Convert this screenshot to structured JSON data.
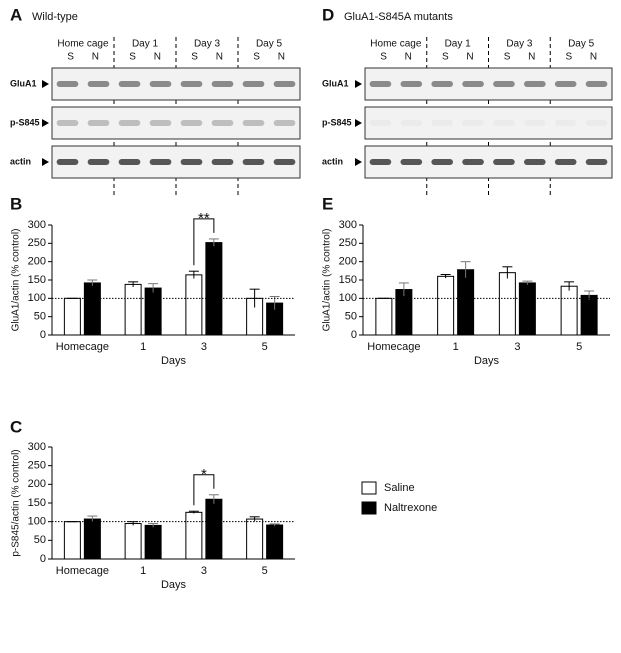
{
  "blots": [
    {
      "letter": "A",
      "title": "Wild-type",
      "groups": [
        "Home cage",
        "Day 1",
        "Day 3",
        "Day 5"
      ],
      "lanes": [
        "S",
        "N"
      ],
      "rows": [
        "GluA1",
        "p-S845",
        "actin"
      ]
    },
    {
      "letter": "D",
      "title": "GluA1-S845A mutants",
      "groups": [
        "Home cage",
        "Day 1",
        "Day 3",
        "Day 5"
      ],
      "lanes": [
        "S",
        "N"
      ],
      "rows": [
        "GluA1",
        "p-S845",
        "actin"
      ]
    }
  ],
  "chart_data": [
    {
      "type": "bar",
      "letter": "B",
      "categories": [
        "Homecage",
        "1",
        "3",
        "5"
      ],
      "xlabel": "Days",
      "ylabel": "GluA1/actin (% control)",
      "ylim": [
        0,
        300
      ],
      "yticks": [
        0,
        50,
        100,
        150,
        200,
        250,
        300
      ],
      "reference_line": 100,
      "series": [
        {
          "name": "Saline",
          "color": "#ffffff",
          "values": [
            100,
            138,
            164,
            100
          ],
          "errors": [
            0,
            7,
            10,
            25
          ]
        },
        {
          "name": "Naltrexone",
          "color": "#000000",
          "values": [
            142,
            128,
            252,
            87
          ],
          "errors": [
            8,
            12,
            10,
            18
          ]
        }
      ],
      "annotations": [
        {
          "text": "**"
        }
      ]
    },
    {
      "type": "bar",
      "letter": "C",
      "categories": [
        "Homecage",
        "1",
        "3",
        "5"
      ],
      "xlabel": "Days",
      "ylabel": "p-S845/actin (% control)",
      "ylim": [
        0,
        300
      ],
      "yticks": [
        0,
        50,
        100,
        150,
        200,
        250,
        300
      ],
      "reference_line": 100,
      "legend": "right",
      "series": [
        {
          "name": "Saline",
          "color": "#ffffff",
          "values": [
            100,
            95,
            125,
            107
          ],
          "errors": [
            0,
            5,
            3,
            6
          ]
        },
        {
          "name": "Naltrexone",
          "color": "#000000",
          "values": [
            107,
            90,
            160,
            91
          ],
          "errors": [
            8,
            5,
            12,
            3
          ]
        }
      ],
      "annotations": [
        {
          "text": "*"
        }
      ]
    },
    {
      "type": "bar",
      "letter": "E",
      "categories": [
        "Homecage",
        "1",
        "3",
        "5"
      ],
      "xlabel": "Days",
      "ylabel": "GluA1/actin (% control)",
      "ylim": [
        0,
        300
      ],
      "yticks": [
        0,
        50,
        100,
        150,
        200,
        250,
        300
      ],
      "reference_line": 100,
      "series": [
        {
          "name": "Saline",
          "color": "#ffffff",
          "values": [
            100,
            160,
            170,
            133
          ],
          "errors": [
            0,
            5,
            16,
            12
          ]
        },
        {
          "name": "Naltrexone",
          "color": "#000000",
          "values": [
            124,
            178,
            142,
            108
          ],
          "errors": [
            18,
            22,
            5,
            12
          ]
        }
      ],
      "annotations": []
    }
  ]
}
